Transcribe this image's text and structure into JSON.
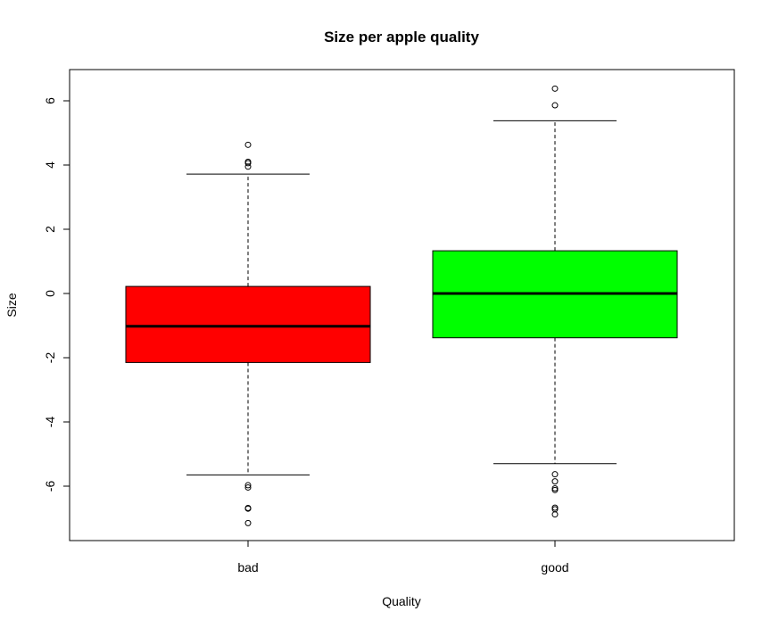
{
  "chart_data": {
    "type": "boxplot",
    "title": "Size per apple quality",
    "xlabel": "Quality",
    "ylabel": "Size",
    "ylim": [
      -7.6,
      6.9
    ],
    "yticks": [
      -6,
      -4,
      -2,
      0,
      2,
      4,
      6
    ],
    "grid": false,
    "categories": [
      "bad",
      "good"
    ],
    "boxes": [
      {
        "name": "bad",
        "color": "#ff0000",
        "whisker_low": -5.65,
        "q1": -2.15,
        "median": -1.02,
        "q3": 0.22,
        "whisker_high": 3.72,
        "outliers": [
          4.63,
          4.1,
          4.06,
          3.95,
          -5.97,
          -6.04,
          -6.68,
          -6.7,
          -7.15
        ]
      },
      {
        "name": "good",
        "color": "#00ff00",
        "whisker_low": -5.3,
        "q1": -1.38,
        "median": 0.0,
        "q3": 1.33,
        "whisker_high": 5.38,
        "outliers": [
          6.38,
          5.86,
          -5.63,
          -5.85,
          -6.07,
          -6.12,
          -6.67,
          -6.72,
          -6.88
        ]
      }
    ]
  }
}
